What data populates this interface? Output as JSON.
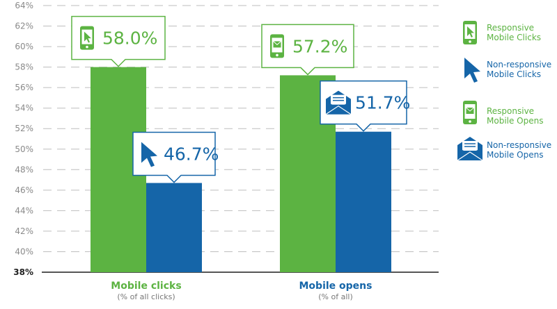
{
  "chart_data": {
    "type": "bar",
    "ylim": [
      38,
      64
    ],
    "yticks": [
      "38%",
      "40%",
      "42%",
      "44%",
      "46%",
      "48%",
      "50%",
      "52%",
      "54%",
      "56%",
      "58%",
      "60%",
      "62%",
      "64%"
    ],
    "grid": true,
    "categories": [
      {
        "label": "Mobile clicks",
        "sublabel": "(% of all clicks)",
        "color": "#5cb342"
      },
      {
        "label": "Mobile opens",
        "sublabel": "(% of all)",
        "color": "#1565a8"
      }
    ],
    "series": [
      {
        "color": "#5cb342",
        "values": [
          58.0,
          57.2
        ],
        "labels": [
          "58.0%",
          "57.2%"
        ],
        "icons": [
          "phone-cursor-icon",
          "phone-envelope-icon"
        ]
      },
      {
        "color": "#1565a8",
        "values": [
          46.7,
          51.7
        ],
        "labels": [
          "46.7%",
          "51.7%"
        ],
        "icons": [
          "cursor-arrow-icon",
          "envelope-icon"
        ]
      }
    ],
    "legend": {
      "placement": "right",
      "items": [
        {
          "line1": "Responsive",
          "line2": "Mobile Clicks",
          "color": "#5cb342",
          "icon": "phone-cursor-icon"
        },
        {
          "line1": "Non-responsive",
          "line2": "Mobile Clicks",
          "color": "#1565a8",
          "icon": "cursor-arrow-icon"
        },
        {
          "line1": "Responsive",
          "line2": "Mobile Opens",
          "color": "#5cb342",
          "icon": "phone-envelope-icon"
        },
        {
          "line1": "Non-responsive",
          "line2": "Mobile Opens",
          "color": "#1565a8",
          "icon": "envelope-icon"
        }
      ]
    }
  }
}
